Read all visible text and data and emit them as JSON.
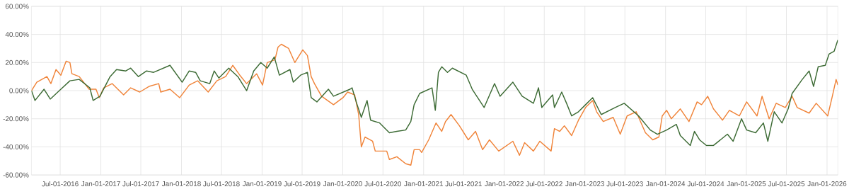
{
  "chart_data": {
    "type": "line",
    "xlim": [
      "2016-02-22",
      "2026-02-19"
    ],
    "ylim": [
      -60,
      60
    ],
    "yticks": [
      {
        "value": -60,
        "label": "-60.00%"
      },
      {
        "value": -40,
        "label": "-40.00%"
      },
      {
        "value": -20,
        "label": "-20.00%"
      },
      {
        "value": 0,
        "label": "0.00%"
      },
      {
        "value": 20,
        "label": "20.00%"
      },
      {
        "value": 40,
        "label": "40.00%"
      },
      {
        "value": 60,
        "label": "60.00%"
      }
    ],
    "xticks": [
      {
        "value": "2016-07-01",
        "label": "Jul-01-2016"
      },
      {
        "value": "2017-01-01",
        "label": "Jan-01-2017"
      },
      {
        "value": "2017-07-01",
        "label": "Jul-01-2017"
      },
      {
        "value": "2018-01-01",
        "label": "Jan-01-2018"
      },
      {
        "value": "2018-07-01",
        "label": "Jul-01-2018"
      },
      {
        "value": "2019-01-01",
        "label": "Jan-01-2019"
      },
      {
        "value": "2019-07-01",
        "label": "Jul-01-2019"
      },
      {
        "value": "2020-01-01",
        "label": "Jan-01-2020"
      },
      {
        "value": "2020-07-01",
        "label": "Jul-01-2020"
      },
      {
        "value": "2021-01-01",
        "label": "Jan-01-2021"
      },
      {
        "value": "2021-07-01",
        "label": "Jul-01-2021"
      },
      {
        "value": "2022-01-01",
        "label": "Jan-01-2022"
      },
      {
        "value": "2022-07-01",
        "label": "Jul-01-2022"
      },
      {
        "value": "2023-01-01",
        "label": "Jan-01-2023"
      },
      {
        "value": "2023-07-01",
        "label": "Jul-01-2023"
      },
      {
        "value": "2024-01-01",
        "label": "Jan-01-2024"
      },
      {
        "value": "2024-07-01",
        "label": "Jul-01-2024"
      },
      {
        "value": "2025-01-01",
        "label": "Jan-01-2025"
      },
      {
        "value": "2025-07-01",
        "label": "Jul-01-2025"
      },
      {
        "value": "2026-01-01",
        "label": "Jan-01-2026"
      }
    ],
    "grid": true,
    "line_style": "solid",
    "series": [
      {
        "color": "#f0843a",
        "x": [
          "2016-02-22",
          "2016-03-17",
          "2016-05-02",
          "2016-05-20",
          "2016-06-12",
          "2016-07-04",
          "2016-07-28",
          "2016-08-14",
          "2016-08-23",
          "2016-09-25",
          "2016-11-09",
          "2016-12-10",
          "2016-12-25",
          "2017-01-14",
          "2017-02-21",
          "2017-04-14",
          "2017-05-16",
          "2017-06-26",
          "2017-08-07",
          "2017-09-20",
          "2017-09-29",
          "2017-11-10",
          "2017-12-24",
          "2018-02-05",
          "2018-03-15",
          "2018-05-02",
          "2018-06-10",
          "2018-07-20",
          "2018-08-21",
          "2018-09-22",
          "2018-10-23",
          "2018-12-07",
          "2019-01-03",
          "2019-01-24",
          "2019-02-28",
          "2019-03-14",
          "2019-03-29",
          "2019-05-01",
          "2019-05-29",
          "2019-07-04",
          "2019-07-25",
          "2019-08-11",
          "2019-08-26",
          "2019-09-27",
          "2019-11-20",
          "2020-01-02",
          "2020-01-23",
          "2020-02-24",
          "2020-03-13",
          "2020-03-25",
          "2020-04-11",
          "2020-05-15",
          "2020-05-27",
          "2020-07-18",
          "2020-07-30",
          "2020-09-02",
          "2020-10-12",
          "2020-11-04",
          "2020-11-19",
          "2020-12-14",
          "2020-12-23",
          "2021-01-24",
          "2021-02-26",
          "2021-03-24",
          "2021-04-10",
          "2021-05-05",
          "2021-06-12",
          "2021-07-22",
          "2021-08-24",
          "2021-09-25",
          "2021-10-26",
          "2021-12-07",
          "2022-02-09",
          "2022-03-11",
          "2022-04-03",
          "2022-05-13",
          "2022-06-11",
          "2022-08-01",
          "2022-08-16",
          "2022-09-09",
          "2022-09-30",
          "2022-11-02",
          "2022-12-03",
          "2023-01-04",
          "2023-02-05",
          "2023-02-23",
          "2023-03-25",
          "2023-05-09",
          "2023-06-10",
          "2023-07-11",
          "2023-08-21",
          "2023-10-02",
          "2023-11-04",
          "2023-12-02",
          "2023-12-17",
          "2024-01-06",
          "2024-01-27",
          "2024-03-08",
          "2024-04-16",
          "2024-05-23",
          "2024-06-12",
          "2024-07-10",
          "2024-08-05",
          "2024-09-15",
          "2024-10-16",
          "2024-11-30",
          "2025-01-02",
          "2025-02-18",
          "2025-03-13",
          "2025-04-14",
          "2025-05-16",
          "2025-06-26",
          "2025-07-27",
          "2025-08-19",
          "2025-10-12",
          "2025-11-13",
          "2026-01-04",
          "2026-01-25",
          "2026-02-11",
          "2026-02-19"
        ],
        "values": [
          0,
          6,
          10,
          5,
          15,
          11,
          21,
          20,
          12,
          10,
          1,
          1,
          -5,
          2,
          5,
          -3,
          2,
          -1,
          3,
          5,
          -1,
          1,
          -5,
          4,
          7,
          -1,
          7,
          10,
          18,
          11,
          5,
          12,
          4,
          20,
          22,
          31,
          33,
          30,
          20,
          29,
          25,
          10,
          5,
          -4,
          -10,
          -5,
          -1,
          -3,
          -17,
          -40,
          -33,
          -36,
          -43,
          -43,
          -49,
          -47,
          -52,
          -53,
          -42,
          -42,
          -44,
          -35,
          -23,
          -29,
          -22,
          -17,
          -25,
          -35,
          -29,
          -42,
          -35,
          -43,
          -36,
          -46,
          -37,
          -43,
          -36,
          -43,
          -27,
          -29,
          -25,
          -32,
          -21,
          -12,
          -7,
          -15,
          -22,
          -19,
          -31,
          -18,
          -15,
          -30,
          -35,
          -33,
          -18,
          -14,
          -20,
          -13,
          -22,
          -8,
          -10,
          -4,
          -13,
          -21,
          -14,
          -18,
          -8,
          -18,
          -4,
          -20,
          -9,
          -12,
          -4,
          -12,
          -16,
          -9,
          -18,
          -4,
          8,
          4
        ]
      },
      {
        "color": "#3d6b35",
        "x": [
          "2016-02-22",
          "2016-03-09",
          "2016-04-19",
          "2016-05-17",
          "2016-07-04",
          "2016-08-14",
          "2016-09-25",
          "2016-11-12",
          "2016-11-27",
          "2016-12-28",
          "2017-02-12",
          "2017-03-13",
          "2017-04-24",
          "2017-05-16",
          "2017-06-20",
          "2017-07-27",
          "2017-08-28",
          "2017-11-10",
          "2018-01-04",
          "2018-02-05",
          "2018-03-06",
          "2018-03-27",
          "2018-05-09",
          "2018-05-29",
          "2018-06-19",
          "2018-08-03",
          "2018-09-13",
          "2018-10-23",
          "2018-11-24",
          "2018-12-26",
          "2019-01-24",
          "2019-02-25",
          "2019-03-20",
          "2019-05-07",
          "2019-05-22",
          "2019-06-24",
          "2019-07-25",
          "2019-08-11",
          "2019-09-06",
          "2019-10-28",
          "2019-11-20",
          "2020-02-03",
          "2020-02-12",
          "2020-03-04",
          "2020-03-25",
          "2020-04-20",
          "2020-05-06",
          "2020-06-16",
          "2020-07-30",
          "2020-09-02",
          "2020-10-12",
          "2020-11-04",
          "2020-11-19",
          "2020-12-14",
          "2021-02-08",
          "2021-02-23",
          "2021-03-09",
          "2021-03-24",
          "2021-04-19",
          "2021-05-11",
          "2021-07-13",
          "2021-08-09",
          "2021-10-02",
          "2021-11-18",
          "2021-12-13",
          "2022-02-09",
          "2022-03-23",
          "2022-05-13",
          "2022-06-05",
          "2022-06-20",
          "2022-08-08",
          "2022-08-16",
          "2022-09-09",
          "2022-09-18",
          "2022-10-10",
          "2022-11-02",
          "2022-12-03",
          "2023-01-04",
          "2023-02-05",
          "2023-03-16",
          "2023-05-18",
          "2023-06-28",
          "2023-09-01",
          "2023-10-24",
          "2023-11-25",
          "2024-01-06",
          "2024-02-19",
          "2024-03-08",
          "2024-04-22",
          "2024-05-11",
          "2024-06-03",
          "2024-07-04",
          "2024-08-05",
          "2024-10-07",
          "2024-11-02",
          "2024-12-10",
          "2025-01-02",
          "2025-02-12",
          "2025-03-19",
          "2025-04-08",
          "2025-05-07",
          "2025-06-11",
          "2025-07-09",
          "2025-07-27",
          "2025-09-11",
          "2025-10-12",
          "2025-11-01",
          "2025-11-22",
          "2025-12-24",
          "2026-01-10",
          "2026-02-02",
          "2026-02-19"
        ],
        "values": [
          0,
          -7,
          1,
          -6,
          1,
          7,
          8,
          2,
          -7,
          -4,
          10,
          15,
          14,
          16,
          10,
          14,
          13,
          18,
          6,
          14,
          13,
          7,
          5,
          14,
          9,
          16,
          10,
          0,
          14,
          20,
          16,
          24,
          11,
          15,
          6,
          11,
          13,
          -5,
          -8,
          1,
          -4,
          1,
          2,
          -9,
          -19,
          -7,
          -21,
          -23,
          -30,
          -29,
          -28,
          -22,
          -10,
          -2,
          2,
          -14,
          13,
          17,
          13,
          16,
          11,
          1,
          -12,
          5,
          -4,
          6,
          -4,
          -9,
          2,
          -12,
          -3,
          -12,
          -4,
          -1,
          -9,
          -18,
          -15,
          -10,
          -5,
          -17,
          -12,
          -9,
          -18,
          -28,
          -31,
          -28,
          -24,
          -32,
          -39,
          -29,
          -35,
          -39,
          -39,
          -31,
          -36,
          -20,
          -28,
          -30,
          -23,
          -36,
          -15,
          -23,
          -13,
          -2,
          8,
          14,
          3,
          17,
          18,
          26,
          28,
          36
        ]
      }
    ]
  }
}
